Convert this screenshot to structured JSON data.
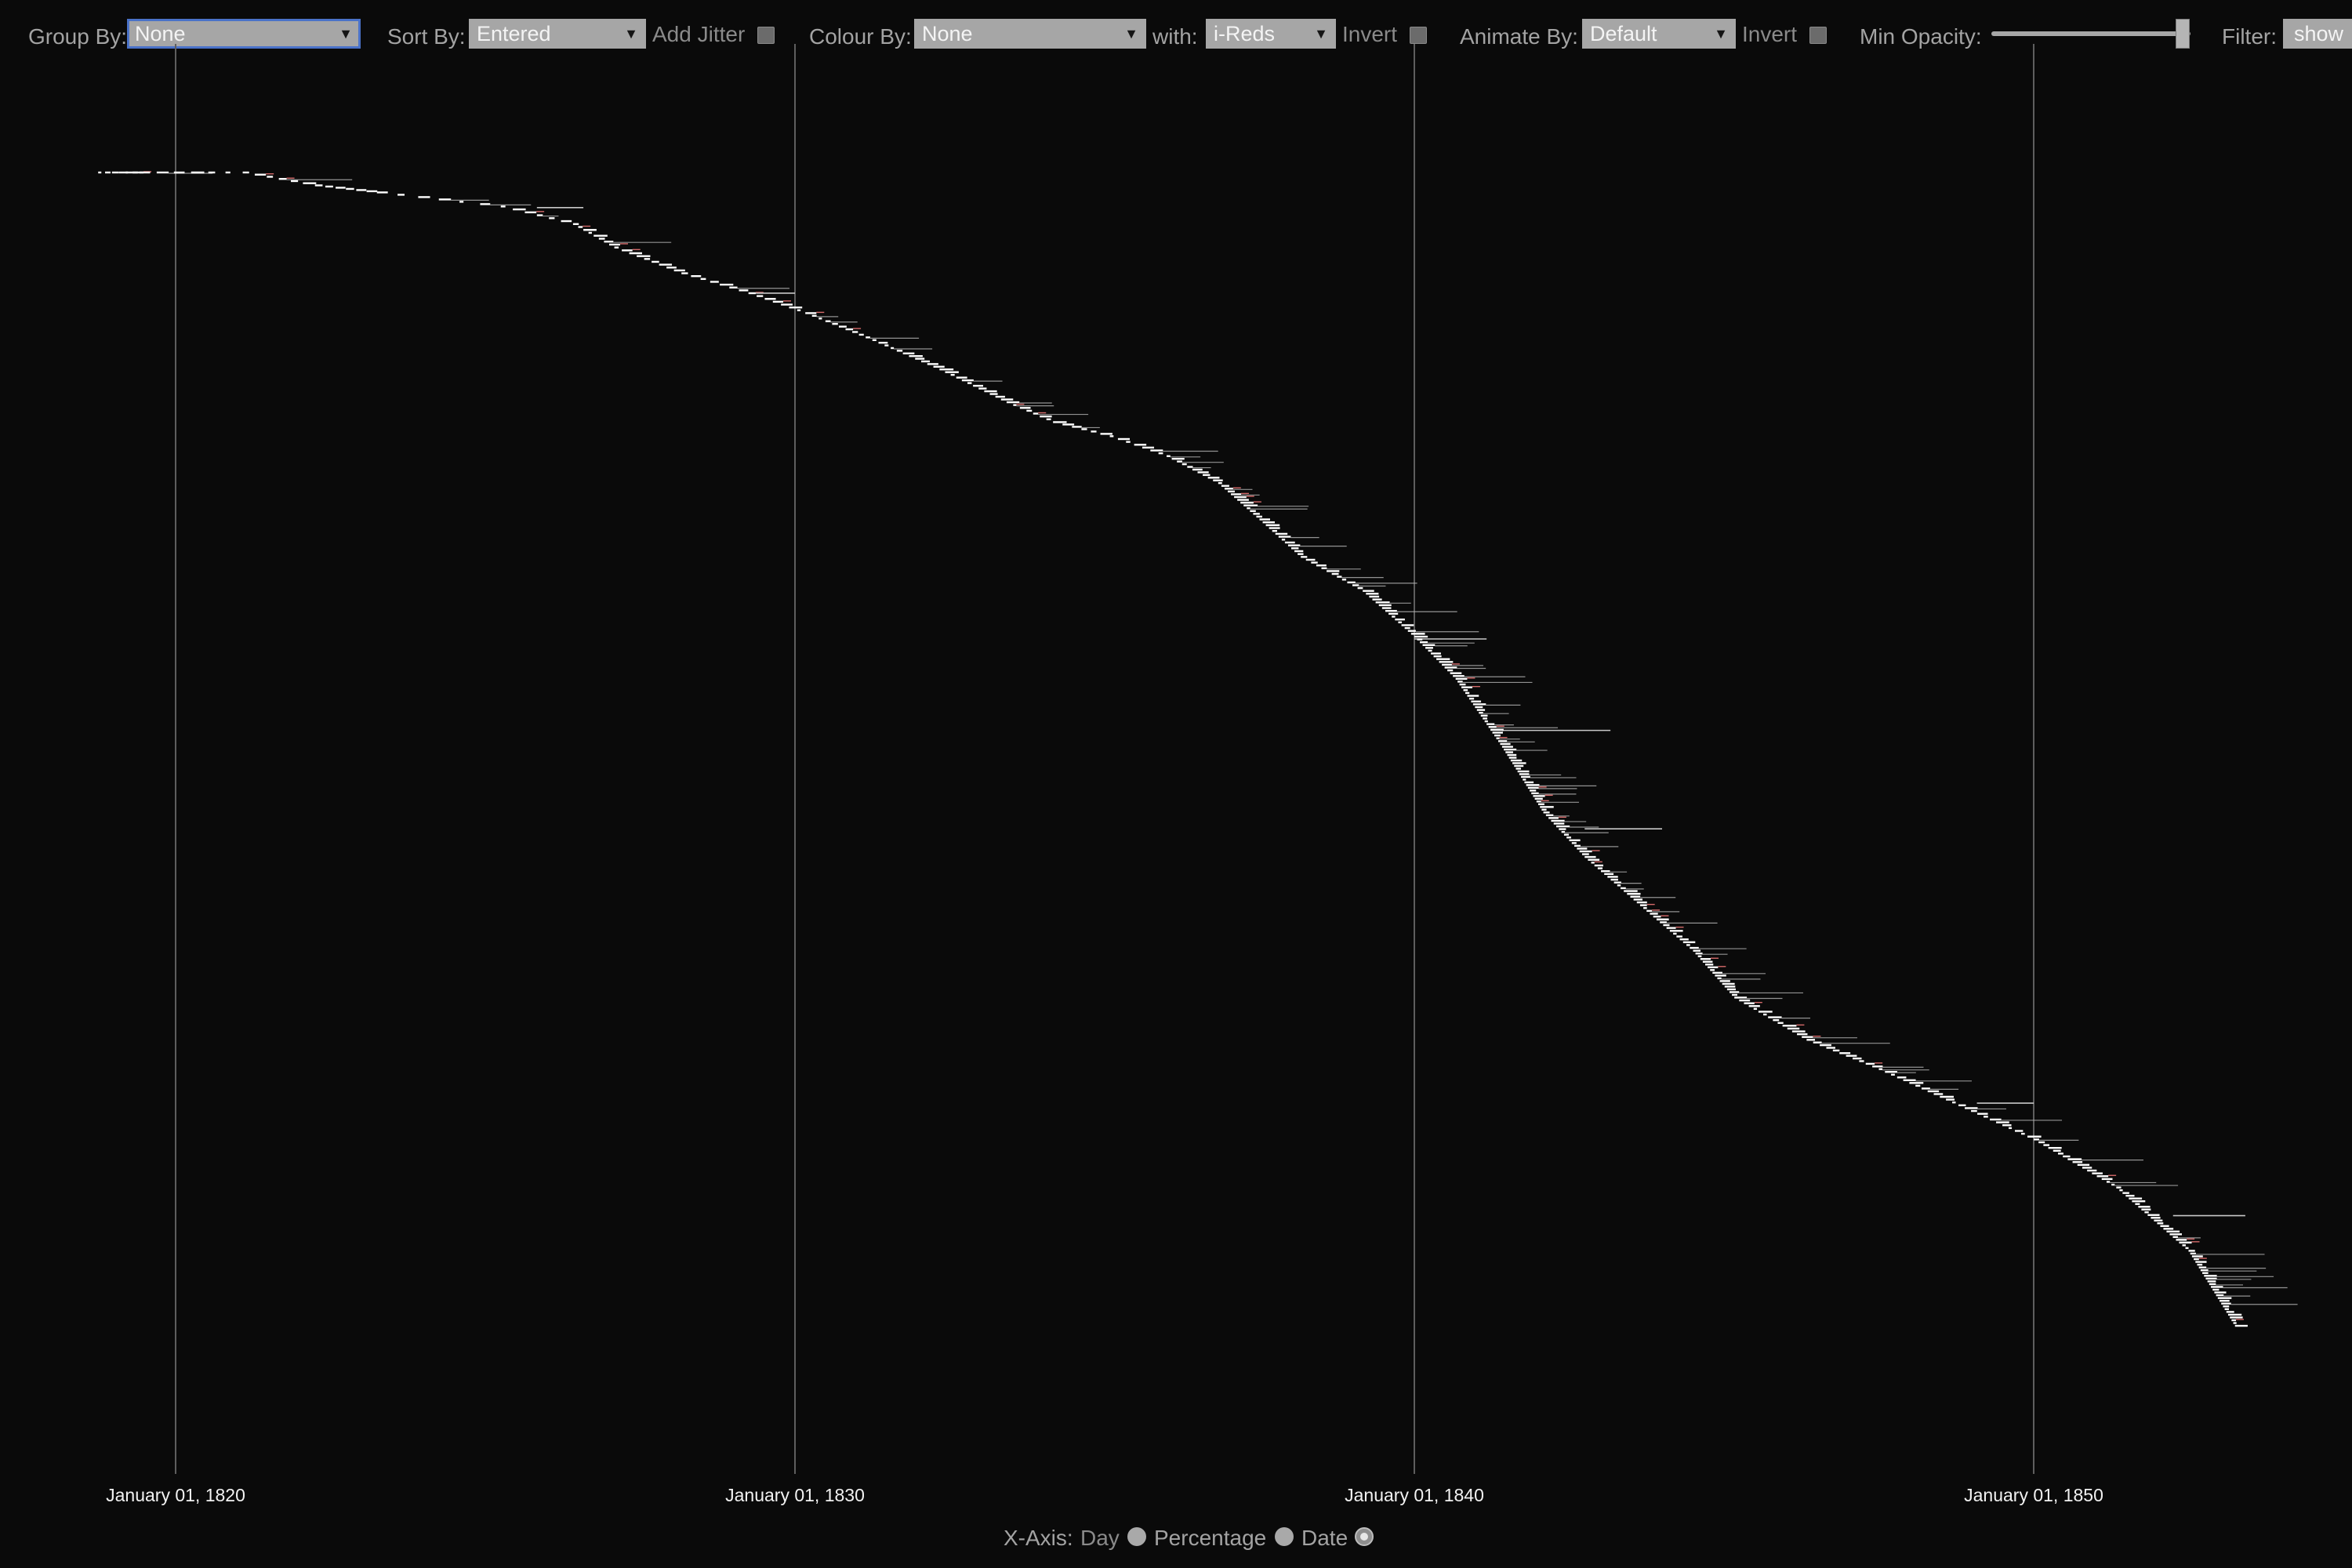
{
  "toolbar": {
    "group_by": {
      "label": "Group By:",
      "value": "None"
    },
    "sort_by": {
      "label": "Sort By:",
      "value": "Entered"
    },
    "add_jitter": {
      "label": "Add Jitter",
      "checked": false
    },
    "colour_by": {
      "label": "Colour By:",
      "value": "None"
    },
    "with": {
      "label": "with:",
      "value": "i-Reds"
    },
    "invert_colour": {
      "label": "Invert",
      "checked": false
    },
    "animate_by": {
      "label": "Animate By:",
      "value": "Default"
    },
    "invert_animate": {
      "label": "Invert",
      "checked": false
    },
    "min_opacity": {
      "label": "Min Opacity:",
      "value": 1.0
    },
    "filter": {
      "label": "Filter:",
      "button": "show"
    }
  },
  "x_axis_options": {
    "label": "X-Axis:",
    "options": [
      "Day",
      "Percentage",
      "Date"
    ],
    "selected": "Date"
  },
  "chart_data": {
    "type": "scatter",
    "xlabel": "",
    "ylabel": "",
    "x_ticks": [
      "January 01, 1820",
      "January 01, 1830",
      "January 01, 1840",
      "January 01, 1850"
    ],
    "xlim": [
      "1818-10",
      "1853-08"
    ],
    "grid": "vertical lines at ticks",
    "series": [
      {
        "points": [
          {
            "x": "1818-10",
            "y": 0.0
          },
          {
            "x": "1819-06",
            "y": 0.0
          },
          {
            "x": "1821-02",
            "y": 0.0
          },
          {
            "x": "1822-04",
            "y": 0.011
          },
          {
            "x": "1823-04",
            "y": 0.017
          },
          {
            "x": "1825-04",
            "y": 0.029
          },
          {
            "x": "1826-06",
            "y": 0.044
          },
          {
            "x": "1827-02",
            "y": 0.064
          },
          {
            "x": "1828-03",
            "y": 0.086
          },
          {
            "x": "1829-04",
            "y": 0.103
          },
          {
            "x": "1830-03",
            "y": 0.12
          },
          {
            "x": "1831-04",
            "y": 0.143
          },
          {
            "x": "1832-05",
            "y": 0.168
          },
          {
            "x": "1833-06",
            "y": 0.196
          },
          {
            "x": "1834-03",
            "y": 0.213
          },
          {
            "x": "1835-02",
            "y": 0.225
          },
          {
            "x": "1836-01",
            "y": 0.242
          },
          {
            "x": "1836-11",
            "y": 0.265
          },
          {
            "x": "1837-07",
            "y": 0.296
          },
          {
            "x": "1838-03",
            "y": 0.328
          },
          {
            "x": "1839-03",
            "y": 0.357
          },
          {
            "x": "1840-01",
            "y": 0.396
          },
          {
            "x": "1840-09",
            "y": 0.432
          },
          {
            "x": "1841-06",
            "y": 0.49
          },
          {
            "x": "1842-02",
            "y": 0.546
          },
          {
            "x": "1842-10",
            "y": 0.584
          },
          {
            "x": "1843-10",
            "y": 0.63
          },
          {
            "x": "1844-07",
            "y": 0.664
          },
          {
            "x": "1845-03",
            "y": 0.704
          },
          {
            "x": "1846-05",
            "y": 0.74
          },
          {
            "x": "1847-07",
            "y": 0.765
          },
          {
            "x": "1848-08",
            "y": 0.791
          },
          {
            "x": "1850-01",
            "y": 0.825
          },
          {
            "x": "1851-05",
            "y": 0.866
          },
          {
            "x": "1852-07",
            "y": 0.92
          },
          {
            "x": "1853-04",
            "y": 0.984
          }
        ]
      }
    ]
  }
}
